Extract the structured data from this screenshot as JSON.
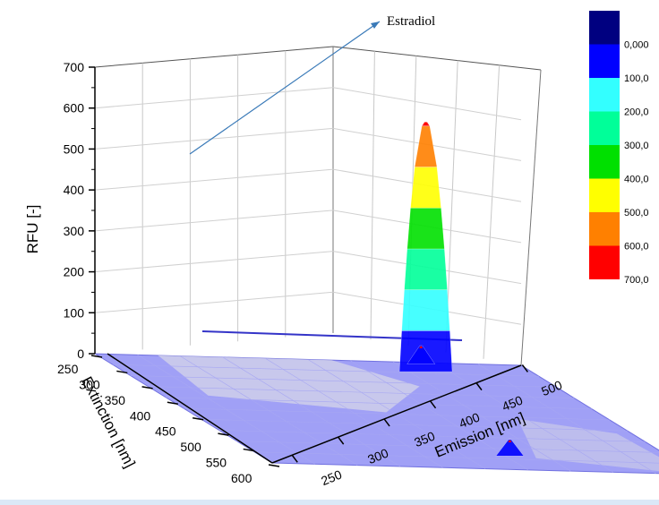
{
  "chart_data": {
    "type": "surface3d",
    "zlabel": "RFU [-]",
    "xlabel": "Emission [nm]",
    "ylabel": "Extinction [nm]",
    "zlim": [
      0,
      700
    ],
    "z_ticks": [
      "0",
      "100",
      "200",
      "300",
      "400",
      "500",
      "600",
      "700"
    ],
    "emission_ticks": [
      "250",
      "300",
      "350",
      "400",
      "450",
      "500"
    ],
    "extinction_ticks": [
      "250",
      "300",
      "350",
      "400",
      "450",
      "500",
      "550",
      "600"
    ],
    "emission_range": [
      240,
      510
    ],
    "extinction_range": [
      250,
      600
    ],
    "peaks": [
      {
        "label": "Estradiol",
        "emission": 310,
        "extinction": 280,
        "rfu": 610
      },
      {
        "label": "",
        "emission": 305,
        "extinction": 255,
        "rfu": 45
      },
      {
        "label": "",
        "emission": 345,
        "extinction": 555,
        "rfu": 40
      }
    ],
    "annotation": "Estradiol",
    "grid": true,
    "legend_position": "right",
    "colorbar": {
      "labels": [
        "0,000",
        "100,0",
        "200,0",
        "300,0",
        "400,0",
        "500,0",
        "600,0",
        "700,0"
      ],
      "colors": [
        "#000080",
        "#0000ff",
        "#33ffff",
        "#00ff99",
        "#00e000",
        "#ffff00",
        "#ff8000",
        "#ff0000"
      ]
    }
  }
}
